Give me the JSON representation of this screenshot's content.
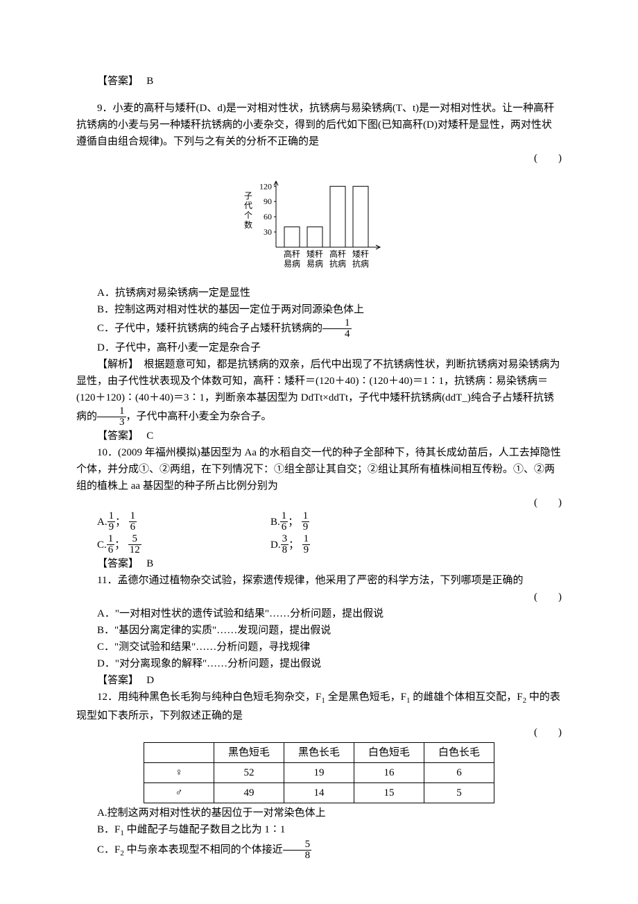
{
  "ans8": {
    "label": "【答案】",
    "val": "B"
  },
  "q9": {
    "num": "9．",
    "text1": "小麦的高秆与矮秆(D、d)是一对相对性状，抗锈病与易染锈病(T、t)是一对相对性状。让一种高秆抗锈病的小麦与另一种矮秆抗锈病的小麦杂交，得到的后代如下图(已知高秆(D)对矮秆是显性，两对性状遵循自由组合规律)。下列与之有关的分析不正确的是",
    "paren": "(　　)",
    "chart": {
      "y_label": "子代个数",
      "ticks": [
        "30",
        "60",
        "90",
        "120"
      ],
      "bar_vals": [
        40,
        40,
        120,
        120
      ],
      "x_labels_top": [
        "高秆",
        "矮秆",
        "高秆",
        "矮秆"
      ],
      "x_labels_bot": [
        "易病",
        "易病",
        "抗病",
        "抗病"
      ],
      "axis_color": "#000000",
      "bar_fill": "#ffffff",
      "bar_stroke": "#000000"
    },
    "optA": "A．抗锈病对易染锈病一定是显性",
    "optB": "B．控制这两对相对性状的基因一定位于两对同源染色体上",
    "optC_pre": "C．子代中，矮秆抗锈病的纯合子占矮秆抗锈病的",
    "optC_frac": {
      "n": "1",
      "d": "4"
    },
    "optD": "D．子代中，高秆小麦一定是杂合子",
    "ex_label": "【解析】",
    "ex_text1": "根据题意可知，都是抗锈病的双亲，后代中出现了不抗锈病性状，判断抗锈病对易染锈病为显性，由子代性状表现及个体数可知，高秆∶矮秆＝(120＋40)∶(120＋40)＝1∶1，抗锈病∶易染锈病＝(120＋120)∶(40＋40)＝3∶1，判断亲本基因型为 DdTt×ddTt，子代中矮秆抗锈病(ddT_)纯合子占矮秆抗锈病的",
    "ex_frac": {
      "n": "1",
      "d": "3"
    },
    "ex_text2": "，子代中高秆小麦全为杂合子。",
    "ans_label": "【答案】",
    "ans_val": "C"
  },
  "q10": {
    "num": "10．",
    "text1": "(2009 年福州模拟)基因型为 Aa 的水稻自交一代的种子全部种下，待其长成幼苗后，人工去掉隐性个体，并分成①、②两组，在下列情况下：①组全部让其自交；②组让其所有植株间相互传粉。①、②两组的植株上 aa 基因型的种子所占比例分别为",
    "paren": "(　　)",
    "choices": [
      {
        "pre": "A.",
        "f1": {
          "n": "1",
          "d": "9"
        },
        "sep": "；",
        "f2": {
          "n": "1",
          "d": "6"
        }
      },
      {
        "pre": "B.",
        "f1": {
          "n": "1",
          "d": "6"
        },
        "sep": "；",
        "f2": {
          "n": "1",
          "d": "9"
        }
      },
      {
        "pre": "C.",
        "f1": {
          "n": "1",
          "d": "6"
        },
        "sep": "；",
        "f2": {
          "n": "5",
          "d": "12"
        }
      },
      {
        "pre": "D.",
        "f1": {
          "n": "3",
          "d": "8"
        },
        "sep": "；",
        "f2": {
          "n": "1",
          "d": "9"
        }
      }
    ],
    "ans_label": "【答案】",
    "ans_val": "B"
  },
  "q11": {
    "num": "11．",
    "text1": "孟德尔通过植物杂交试验，探索遗传规律，他采用了严密的科学方法，下列哪项是正确的",
    "paren": "(　　)",
    "optA": "A．\"一对相对性状的遗传试验和结果\"……分析问题，提出假说",
    "optB": "B．\"基因分离定律的实质\"……发现问题，提出假说",
    "optC": "C．\"测交试验和结果\"……分析问题，寻找规律",
    "optD": "D．\"对分离现象的解释\"……分析问题，提出假说",
    "ans_label": "【答案】",
    "ans_val": "D"
  },
  "q12": {
    "num": "12．",
    "text1_a": "用纯种黑色长毛狗与纯种白色短毛狗杂交，F",
    "text1_b": " 全是黑色短毛，F",
    "text1_c": " 的雌雄个体相互交配，F",
    "text1_d": " 中的表现型如下表所示，下列叙述正确的是",
    "sub1": "1",
    "sub2": "1",
    "sub3": "2",
    "paren": "(　　)",
    "table": {
      "headers": [
        "",
        "黑色短毛",
        "黑色长毛",
        "白色短毛",
        "白色长毛"
      ],
      "rows": [
        [
          "♀",
          "52",
          "19",
          "16",
          "6"
        ],
        [
          "♂",
          "49",
          "14",
          "15",
          "5"
        ]
      ]
    },
    "optA": "A.控制这两对相对性状的基因位于一对常染色体上",
    "optB_a": "B．F",
    "optB_sub": "1",
    "optB_b": " 中雌配子与雄配子数目之比为 1∶1",
    "optC_a": "C．F",
    "optC_sub": "2",
    "optC_b": " 中与亲本表现型不相同的个体接近",
    "optC_frac": {
      "n": "5",
      "d": "8"
    }
  }
}
